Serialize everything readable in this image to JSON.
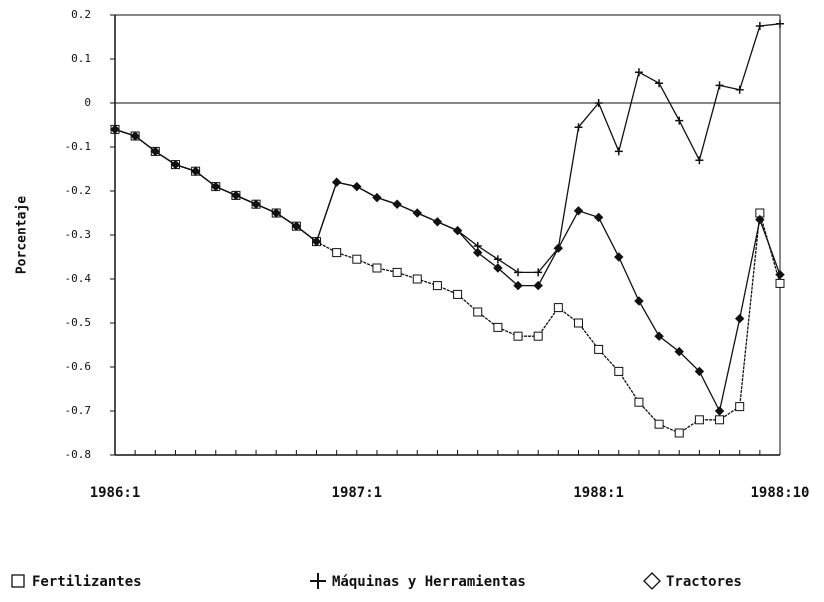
{
  "chart_data": {
    "type": "line",
    "y_label": "Porcentaje",
    "categories": [
      "1986:1",
      null,
      null,
      null,
      null,
      null,
      null,
      null,
      null,
      null,
      null,
      null,
      "1987:1",
      null,
      null,
      null,
      null,
      null,
      null,
      null,
      null,
      null,
      null,
      null,
      "1988:1",
      null,
      null,
      null,
      null,
      null,
      null,
      null,
      null,
      "1988:10"
    ],
    "series": [
      {
        "name": "Fertilizantes",
        "color": "#111111",
        "marker": "square",
        "values": [
          -0.06,
          -0.075,
          -0.11,
          -0.14,
          -0.155,
          -0.19,
          -0.21,
          -0.23,
          -0.25,
          -0.28,
          -0.315,
          -0.34,
          -0.355,
          -0.375,
          -0.385,
          -0.4,
          -0.415,
          -0.435,
          -0.475,
          -0.51,
          -0.53,
          -0.53,
          -0.465,
          -0.5,
          -0.56,
          -0.61,
          -0.68,
          -0.73,
          -0.75,
          -0.72,
          -0.72,
          -0.69,
          -0.25,
          -0.41
        ]
      },
      {
        "name": "Máquinas y Herramientas",
        "color": "#111111",
        "marker": "plus",
        "values": [
          -0.06,
          -0.075,
          -0.11,
          -0.14,
          -0.155,
          -0.19,
          -0.21,
          -0.23,
          -0.25,
          -0.28,
          -0.315,
          -0.18,
          -0.19,
          -0.215,
          -0.23,
          -0.25,
          -0.27,
          -0.29,
          -0.325,
          -0.355,
          -0.385,
          -0.385,
          -0.33,
          -0.055,
          0.0,
          -0.11,
          0.07,
          0.045,
          -0.04,
          -0.13,
          0.04,
          0.03,
          0.175,
          0.18
        ]
      },
      {
        "name": "Tractores",
        "color": "#111111",
        "marker": "diamond",
        "values": [
          -0.06,
          -0.075,
          -0.11,
          -0.14,
          -0.155,
          -0.19,
          -0.21,
          -0.23,
          -0.25,
          -0.28,
          -0.315,
          -0.18,
          -0.19,
          -0.215,
          -0.23,
          -0.25,
          -0.27,
          -0.29,
          -0.34,
          -0.375,
          -0.415,
          -0.415,
          -0.33,
          -0.245,
          -0.26,
          -0.35,
          -0.45,
          -0.53,
          -0.565,
          -0.61,
          -0.7,
          -0.49,
          -0.265,
          -0.39
        ]
      }
    ],
    "ylim": [
      -0.8,
      0.2
    ],
    "yticks": [
      0.2,
      0.1,
      0,
      -0.1,
      -0.2,
      -0.3,
      -0.4,
      -0.5,
      -0.6,
      -0.7,
      -0.8
    ],
    "zero_line": true,
    "legend": "bottom"
  }
}
